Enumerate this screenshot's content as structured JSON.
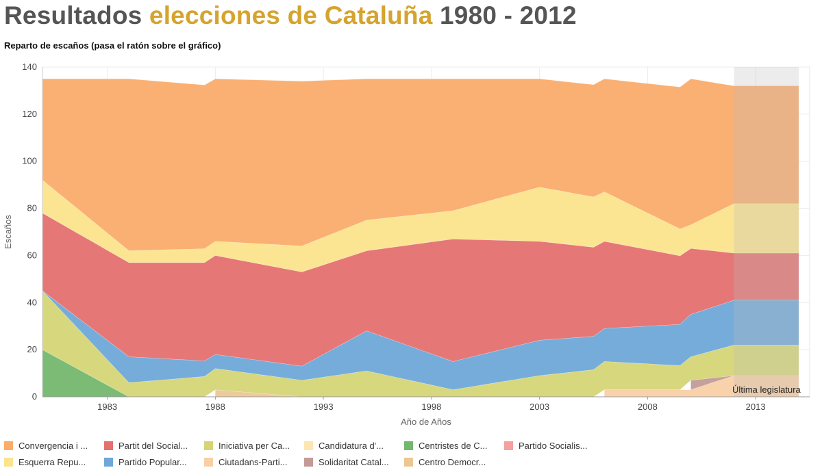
{
  "header": {
    "title_part1": "Resultados ",
    "title_part2": "elecciones de Cataluña",
    "title_part3": " 1980 - 2012",
    "subtitle": "Reparto de escaños (pasa el ratón sobre el gráfico)"
  },
  "chart_data": {
    "type": "area",
    "stacked": true,
    "xlabel": "Año de Años",
    "ylabel": "Escaños",
    "xlim": [
      1980,
      2015.5
    ],
    "ylim": [
      0,
      140
    ],
    "x_ticks": [
      1983,
      1988,
      1993,
      1998,
      2003,
      2008,
      2013
    ],
    "y_ticks": [
      0,
      20,
      40,
      60,
      80,
      100,
      120,
      140
    ],
    "grid": true,
    "annotation": "Última legislatura",
    "highlight_range": [
      2012,
      2015
    ],
    "series": [
      {
        "name": "Centristes de C...",
        "color": "#74b76e",
        "x": [
          1980,
          1984
        ],
        "values": [
          20,
          0
        ]
      },
      {
        "name": "Centro Democr...",
        "color": "#ecc793",
        "x": [
          1988,
          1992
        ],
        "values": [
          3,
          0
        ]
      },
      {
        "name": "Ciutadans-Parti...",
        "color": "#f9cfa5",
        "x": [
          2006,
          2010,
          2012,
          2015
        ],
        "values": [
          3,
          3,
          9,
          9
        ]
      },
      {
        "name": "Solidaritat Catal...",
        "color": "#c29b97",
        "x": [
          2010,
          2012
        ],
        "values": [
          4,
          0
        ]
      },
      {
        "name": "Iniciativa per Ca...",
        "color": "#d5d576",
        "x": [
          1980,
          1984,
          1988,
          1992,
          1995,
          1999,
          2003,
          2006,
          2010,
          2012,
          2015
        ],
        "values": [
          25,
          6,
          9,
          7,
          11,
          3,
          9,
          12,
          10,
          13,
          13
        ]
      },
      {
        "name": "Partido Popular...",
        "color": "#6fa8d8",
        "x": [
          1980,
          1984,
          1988,
          1992,
          1995,
          1999,
          2003,
          2006,
          2010,
          2012,
          2015
        ],
        "values": [
          0,
          11,
          6,
          6,
          17,
          12,
          15,
          14,
          18,
          19,
          19
        ]
      },
      {
        "name": "Partit del Social...",
        "color": "#e57070",
        "x": [
          1980,
          1984,
          1988,
          1992,
          1995,
          1999,
          2003,
          2006,
          2010,
          2012,
          2015
        ],
        "values": [
          33,
          40,
          42,
          40,
          34,
          52,
          42,
          37,
          28,
          20,
          20
        ]
      },
      {
        "name": "Esquerra Repu...",
        "color": "#fbe48d",
        "x": [
          1980,
          1984,
          1988,
          1992,
          1995,
          1999,
          2003,
          2006,
          2010,
          2012,
          2015
        ],
        "values": [
          14,
          5,
          6,
          11,
          13,
          12,
          23,
          21,
          10,
          21,
          21
        ]
      },
      {
        "name": "Convergencia i ...",
        "color": "#fbac6b",
        "x": [
          1980,
          1984,
          1988,
          1992,
          1995,
          1999,
          2003,
          2006,
          2010,
          2012,
          2015
        ],
        "values": [
          43,
          73,
          69,
          70,
          60,
          56,
          46,
          48,
          62,
          50,
          50
        ]
      },
      {
        "name": "Candidatura d'...",
        "color": "#fde6b2",
        "x": [],
        "values": []
      },
      {
        "name": "Partido Socialis...",
        "color": "#f4a19d",
        "x": [],
        "values": []
      }
    ]
  },
  "legend": {
    "items": [
      {
        "label": "Convergencia i ...",
        "color": "#fbac6b"
      },
      {
        "label": "Partit del Social...",
        "color": "#e57070"
      },
      {
        "label": "Iniciativa per Ca...",
        "color": "#d5d576"
      },
      {
        "label": "Candidatura d'...",
        "color": "#fde6b2"
      },
      {
        "label": "Centristes de C...",
        "color": "#74b76e"
      },
      {
        "label": "Partido Socialis...",
        "color": "#f4a19d"
      },
      {
        "label": "Esquerra Repu...",
        "color": "#fbe48d"
      },
      {
        "label": "Partido Popular...",
        "color": "#6fa8d8"
      },
      {
        "label": "Ciutadans-Parti...",
        "color": "#f9cfa5"
      },
      {
        "label": "Solidaritat Catal...",
        "color": "#c29b97"
      },
      {
        "label": "Centro Democr...",
        "color": "#ecc793"
      }
    ]
  }
}
